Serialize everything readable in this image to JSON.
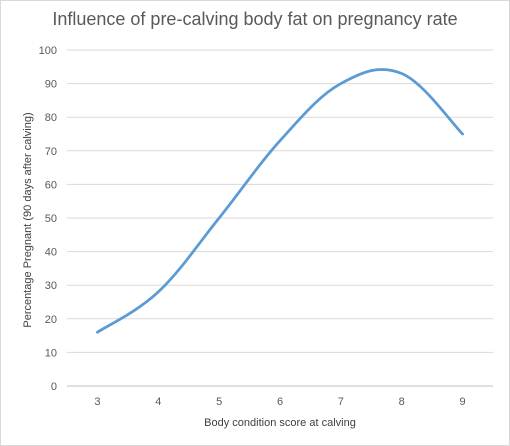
{
  "chart_data": {
    "type": "line",
    "title": "Influence of pre-calving body fat on pregnancy rate",
    "xlabel": "Body condition score at calving",
    "ylabel": "Percentage Pregnant (90 days after calving)",
    "x": [
      3,
      4,
      5,
      6,
      7,
      8,
      9
    ],
    "series": [
      {
        "values": [
          16,
          28,
          50,
          73,
          90,
          93,
          75
        ]
      }
    ],
    "xlim": [
      2.5,
      9.5
    ],
    "ylim": [
      0,
      100
    ],
    "yticks": [
      0,
      10,
      20,
      30,
      40,
      50,
      60,
      70,
      80,
      90,
      100
    ],
    "grid": "horizontal",
    "legend": "none",
    "colors": {
      "line": "#5b9bd5",
      "grid": "#d9d9d9",
      "axis": "#bfbfbf",
      "text": "#595959"
    }
  }
}
